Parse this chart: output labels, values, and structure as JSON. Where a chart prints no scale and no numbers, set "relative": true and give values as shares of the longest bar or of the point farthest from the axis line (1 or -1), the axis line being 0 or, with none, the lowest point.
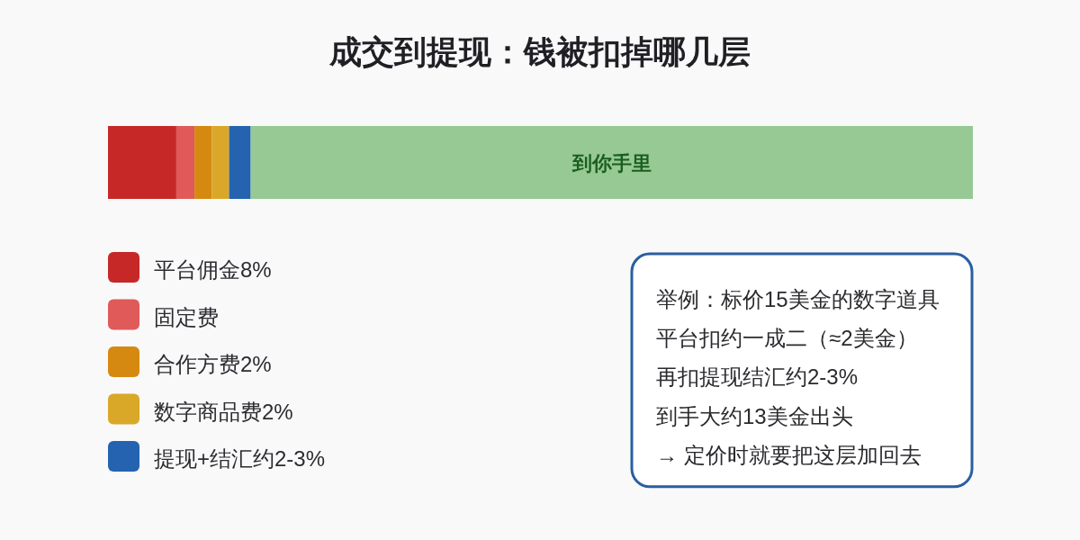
{
  "chart_data": {
    "type": "bar",
    "orientation": "horizontal",
    "stacked": true,
    "relative": true,
    "title": "成交到提现：钱被扣掉哪几层",
    "categories": [
      null
    ],
    "series": [
      {
        "name": "平台佣金8%",
        "color": "#c62828",
        "values": [
          0.079
        ]
      },
      {
        "name": "固定费",
        "color": "#e05a5a",
        "values": [
          0.021
        ]
      },
      {
        "name": "合作方费2%",
        "color": "#d68910",
        "values": [
          0.02
        ]
      },
      {
        "name": "数字商品费2%",
        "color": "#d9a828",
        "values": [
          0.02
        ]
      },
      {
        "name": "提现+结汇约2-3%",
        "color": "#2563b0",
        "values": [
          0.025
        ]
      },
      {
        "name": "到你手里",
        "color": "#96c994",
        "values": [
          0.835
        ]
      }
    ],
    "legend": "bottom left",
    "annotations": [
      "举例：标价15美金的数字道具",
      "平台扣约一成二（≈2美金）",
      "再扣提现结汇约2-3%",
      "到手大约13美金出头",
      "→ 定价时就要把这层加回去"
    ]
  }
}
